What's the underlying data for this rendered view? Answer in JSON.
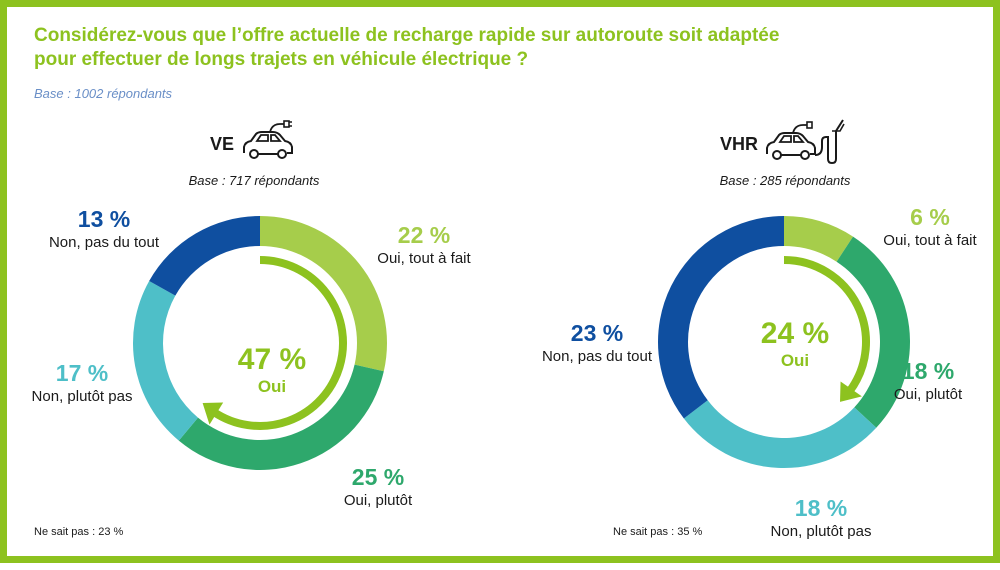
{
  "title": "Considérez-vous que l’offre actuelle de recharge rapide sur autoroute soit adaptée pour effectuer de longs trajets en véhicule électrique ?",
  "base": "Base : 1002 répondants",
  "colors": {
    "frame": "#8dc21f",
    "tout_a_fait": "#a6cd4b",
    "plutot": "#2ea86c",
    "plutot_pas": "#4ebfc8",
    "pas_du_tout": "#0f4fa0",
    "oui": "#8dc21f"
  },
  "chart_data": [
    {
      "type": "pie",
      "title": "VE",
      "base": "Base : 717 répondants",
      "total_label": "47 %",
      "total_caption": "Oui",
      "ne_sait_pas": "Ne sait pas : 23 %",
      "categories": [
        "Oui, tout à fait",
        "Oui, plutôt",
        "Non, plutôt pas",
        "Non, pas du tout"
      ],
      "values": [
        22,
        25,
        17,
        13
      ],
      "labels": [
        "22 %",
        "25 %",
        "17 %",
        "13 %"
      ],
      "oui_total": 47
    },
    {
      "type": "pie",
      "title": "VHR",
      "base": "Base : 285 répondants",
      "total_label": "24 %",
      "total_caption": "Oui",
      "ne_sait_pas": "Ne sait pas : 35 %",
      "categories": [
        "Oui, tout à fait",
        "Oui, plutôt",
        "Non, plutôt pas",
        "Non, pas du tout"
      ],
      "values": [
        6,
        18,
        18,
        23
      ],
      "labels": [
        "6 %",
        "18 %",
        "18 %",
        "23 %"
      ],
      "oui_total": 24
    }
  ]
}
